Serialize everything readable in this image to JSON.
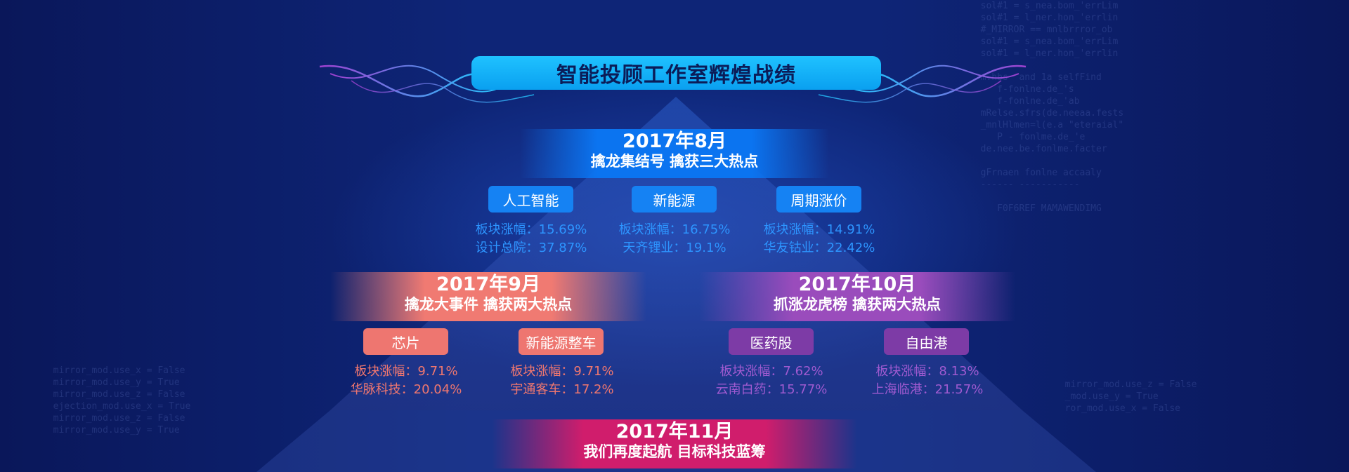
{
  "header": {
    "title": "智能投顾工作室辉煌战绩"
  },
  "stages": {
    "aug": {
      "year_month": "2017年8月",
      "subtitle": "擒龙集结号 擒获三大热点",
      "sectors": [
        {
          "name": "人工智能",
          "line1": "板块涨幅：15.69%",
          "line2": "设计总院：37.87%"
        },
        {
          "name": "新能源",
          "line1": "板块涨幅：16.75%",
          "line2": "天齐锂业：19.1%"
        },
        {
          "name": "周期涨价",
          "line1": "板块涨幅：14.91%",
          "line2": "华友钴业：22.42%"
        }
      ]
    },
    "sep": {
      "year_month": "2017年9月",
      "subtitle": "擒龙大事件 擒获两大热点",
      "sectors": [
        {
          "name": "芯片",
          "line1": "板块涨幅：9.71%",
          "line2": "华脉科技：20.04%"
        },
        {
          "name": "新能源整车",
          "line1": "板块涨幅：9.71%",
          "line2": "宇通客车：17.2%"
        }
      ]
    },
    "oct": {
      "year_month": "2017年10月",
      "subtitle": "抓涨龙虎榜 擒获两大热点",
      "sectors": [
        {
          "name": "医药股",
          "line1": "板块涨幅：7.62%",
          "line2": "云南白药：15.77%"
        },
        {
          "name": "自由港",
          "line1": "板块涨幅：8.13%",
          "line2": "上海临港：21.57%"
        }
      ]
    },
    "nov": {
      "year_month": "2017年11月",
      "subtitle": "我们再度起航 目标科技蓝筹"
    }
  },
  "colors": {
    "blue": "#1582f3",
    "coral": "#ee7670",
    "purple": "#7d3ba6",
    "magenta": "#d01d6c",
    "title_bar": "#10b0f8"
  }
}
